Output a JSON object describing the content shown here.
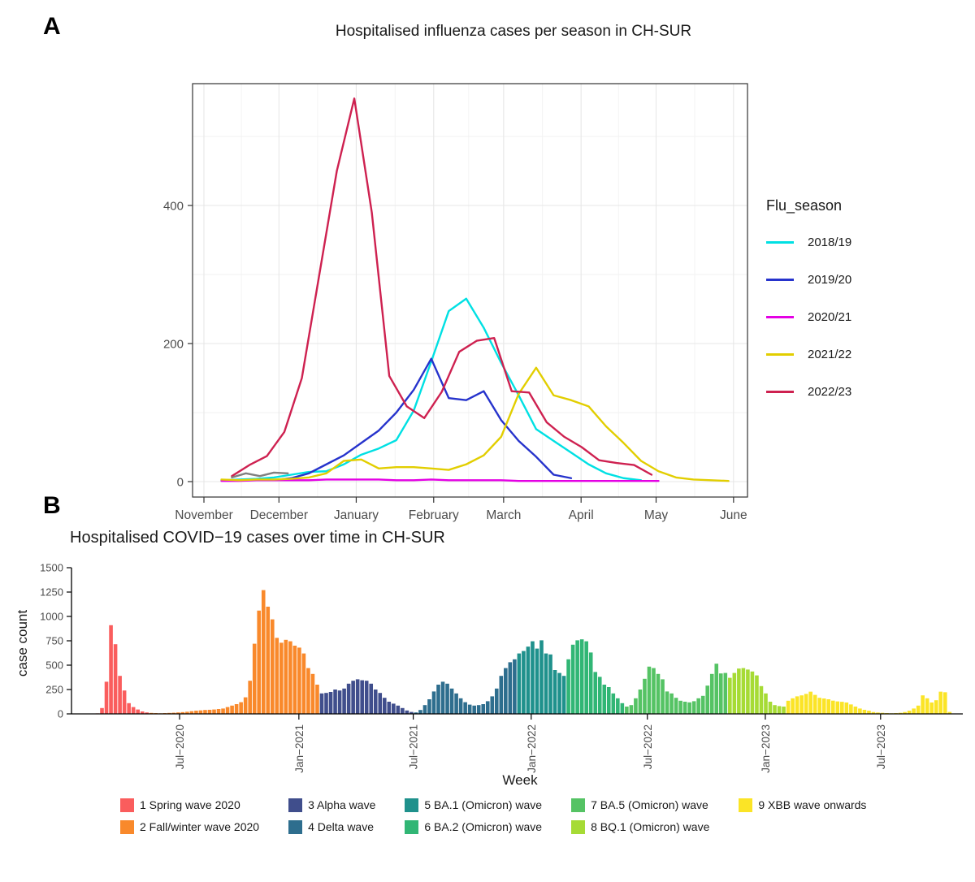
{
  "chart_data": [
    {
      "id": "flu",
      "type": "line",
      "panel_tag": "A",
      "title": "Hospitalised influenza cases per season in CH-SUR",
      "legend_title": "Flu_season",
      "legend_position": "right",
      "grid": true,
      "x_axis": {
        "unit": "weeks since Nov 1",
        "tick_labels": [
          "November",
          "December",
          "January",
          "February",
          "March",
          "April",
          "May",
          "June"
        ],
        "tick_week_offsets": [
          0,
          4.29,
          8.71,
          13.14,
          17.14,
          21.57,
          25.86,
          30.29
        ],
        "minor_week_offsets": [
          2.14,
          6.5,
          10.93,
          15.14,
          19.36,
          23.71,
          28.07
        ]
      },
      "y_axis": {
        "ticks": [
          0,
          200,
          400
        ],
        "minor_ticks": [
          100,
          300,
          500
        ],
        "min": 0,
        "max": 576
      },
      "series": [
        {
          "name": "2018/19",
          "color": "#00E0E3",
          "in_legend": true,
          "start_week": 1,
          "step_weeks": 1,
          "values": [
            2,
            3,
            4,
            6,
            10,
            14,
            15,
            25,
            39,
            48,
            60,
            103,
            174,
            247,
            265,
            223,
            172,
            125,
            76,
            59,
            42,
            25,
            12,
            5,
            2
          ]
        },
        {
          "name": "2019/20",
          "color": "#2633CC",
          "in_legend": true,
          "start_week": 4,
          "step_weeks": 1,
          "values": [
            2,
            5,
            12,
            25,
            38,
            56,
            74,
            100,
            133,
            178,
            121,
            118,
            131,
            89,
            59,
            36,
            10,
            5
          ]
        },
        {
          "name": "2020/21",
          "color": "#E400E4",
          "in_legend": true,
          "start_week": 1,
          "step_weeks": 1,
          "values": [
            1,
            1,
            2,
            2,
            2,
            2,
            3,
            3,
            3,
            3,
            2,
            2,
            3,
            2,
            2,
            2,
            2,
            1,
            1,
            1,
            1,
            1,
            1,
            1,
            1,
            1
          ]
        },
        {
          "name": "2021/22",
          "color": "#E2CE00",
          "in_legend": true,
          "start_week": 1,
          "step_weeks": 1,
          "values": [
            3,
            2,
            3,
            3,
            4,
            6,
            12,
            30,
            32,
            19,
            21,
            21,
            19,
            17,
            25,
            38,
            65,
            127,
            165,
            125,
            118,
            109,
            80,
            56,
            30,
            15,
            6,
            3,
            2,
            1
          ]
        },
        {
          "name": "2022/23",
          "color": "#CE2150",
          "in_legend": true,
          "start_week": 1.6,
          "step_weeks": 1,
          "values": [
            8,
            24,
            37,
            72,
            150,
            300,
            450,
            555,
            390,
            153,
            109,
            92,
            130,
            188,
            204,
            208,
            131,
            129,
            86,
            65,
            50,
            31,
            27,
            24,
            10
          ]
        },
        {
          "name": "NA",
          "color": "#808080",
          "in_legend": false,
          "start_week": 1.6,
          "step_weeks": 0.8,
          "values": [
            6,
            12,
            8,
            13,
            12
          ]
        }
      ]
    },
    {
      "id": "covid",
      "type": "bar",
      "panel_tag": "B",
      "title": "Hospitalised COVID−19 cases over time in CH-SUR",
      "x_label": "Week",
      "y_label": "case count",
      "grid": false,
      "legend_position": "bottom",
      "y_axis": {
        "ticks": [
          0,
          250,
          500,
          750,
          1000,
          1250,
          1500
        ],
        "min": 0,
        "max": 1500
      },
      "x_axis": {
        "unit": "weeks since 2020-02-24",
        "tick_labels": [
          "Jul−2020",
          "Jan−2021",
          "Jul−2021",
          "Jan−2022",
          "Jul−2022",
          "Jan−2023",
          "Jul−2023"
        ],
        "tick_week_offsets": [
          18.3,
          44.9,
          70.4,
          96.7,
          122.6,
          148.9,
          174.6
        ]
      },
      "waves": [
        {
          "label": "1 Spring wave 2020",
          "color": "#FA5D5D",
          "values": [
            5,
            60,
            330,
            910,
            715,
            390,
            240,
            110,
            70,
            45,
            25,
            15
          ]
        },
        {
          "label": "2 Fall/winter wave 2020",
          "color": "#F9892B",
          "values": [
            10,
            8,
            6,
            8,
            10,
            12,
            15,
            18,
            22,
            28,
            33,
            36,
            40,
            42,
            45,
            50,
            55,
            70,
            85,
            100,
            120,
            170,
            340,
            720,
            1060,
            1270,
            1100,
            970,
            780,
            730,
            760,
            745,
            700,
            680,
            620,
            470,
            410,
            300
          ]
        },
        {
          "label": "3 Alpha wave",
          "color": "#404E8C",
          "values": [
            210,
            215,
            225,
            250,
            240,
            260,
            310,
            340,
            355,
            345,
            340,
            310,
            250,
            215,
            165,
            125,
            105,
            85,
            60,
            35,
            20
          ]
        },
        {
          "label": "4 Delta wave",
          "color": "#2E6E8E",
          "values": [
            15,
            40,
            90,
            150,
            230,
            300,
            330,
            310,
            260,
            210,
            160,
            120,
            95,
            85,
            90,
            100,
            130,
            180,
            260,
            390,
            470,
            530,
            560
          ]
        },
        {
          "label": "5 BA.1 (Omicron) wave",
          "color": "#1F918C",
          "values": [
            620,
            645,
            690,
            745,
            670,
            755,
            620,
            610,
            450,
            420,
            390
          ]
        },
        {
          "label": "6 BA.2 (Omicron) wave",
          "color": "#31B675",
          "values": [
            560,
            710,
            755,
            765,
            745,
            630,
            430,
            380,
            300,
            275,
            210,
            160,
            110
          ]
        },
        {
          "label": "7 BA.5 (Omicron) wave",
          "color": "#55C364",
          "values": [
            75,
            90,
            160,
            250,
            360,
            485,
            470,
            410,
            355,
            230,
            210,
            165,
            135,
            125,
            118,
            130,
            160,
            185,
            290,
            410,
            515,
            415,
            420
          ]
        },
        {
          "label": "8 BQ.1 (Omicron) wave",
          "color": "#A6DB35",
          "values": [
            370,
            420,
            465,
            470,
            455,
            435,
            395,
            285,
            210,
            125,
            90,
            80,
            75
          ]
        },
        {
          "label": "9 XBB wave onwards",
          "color": "#FBE426",
          "values": [
            135,
            160,
            180,
            190,
            205,
            228,
            195,
            165,
            158,
            150,
            136,
            128,
            124,
            117,
            97,
            75,
            55,
            42,
            33,
            19,
            14,
            11,
            8,
            6,
            8,
            11,
            19,
            33,
            55,
            85,
            190,
            160,
            117,
            140,
            228,
            222,
            20
          ]
        }
      ]
    }
  ]
}
